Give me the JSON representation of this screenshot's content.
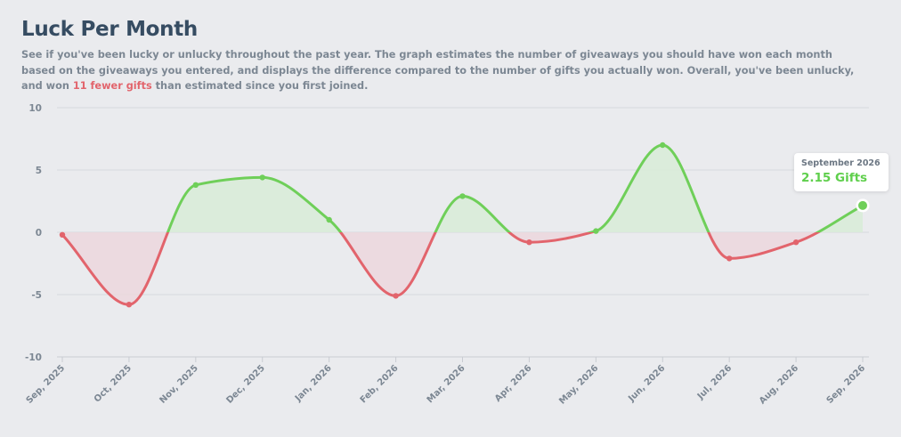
{
  "page": {
    "title": "Luck Per Month",
    "description_before": "See if you've been lucky or unlucky throughout the past year. The graph estimates the number of giveaways you should have won each month based on the giveaways you entered, and displays the difference compared to the number of gifts you actually won. Overall, you've been unlucky, and won ",
    "description_highlight": "11 fewer gifts",
    "description_after": " than estimated since you first joined.",
    "highlight_color": "#e2646c"
  },
  "tooltip": {
    "label": "September 2026",
    "value": "2.15 Gifts"
  },
  "chart_data": {
    "type": "area",
    "categories": [
      "Sep, 2025",
      "Oct, 2025",
      "Nov, 2025",
      "Dec, 2025",
      "Jan, 2026",
      "Feb, 2026",
      "Mar, 2026",
      "Apr, 2026",
      "May, 2026",
      "Jun, 2026",
      "Jul, 2026",
      "Aug, 2026",
      "Sep, 2026"
    ],
    "series": [
      {
        "values": [
          -0.2,
          -5.8,
          3.8,
          4.4,
          1.0,
          -5.1,
          2.9,
          -0.8,
          0.1,
          7.0,
          -2.1,
          -0.8,
          2.15
        ]
      }
    ],
    "y_ticks": [
      "10",
      "5",
      "0",
      "-5",
      "-10"
    ],
    "ylim": [
      -10,
      10
    ],
    "grid": true,
    "positive_color": "#6fcf59",
    "negative_color": "#e2646c",
    "positive_fill": "#d8ecd7",
    "negative_fill": "#ecd7dd"
  }
}
